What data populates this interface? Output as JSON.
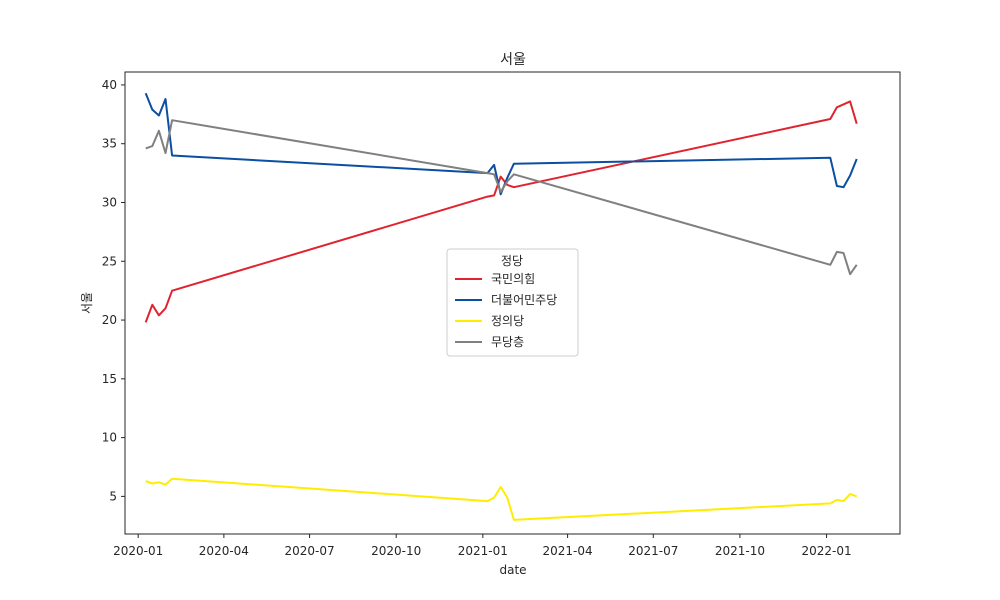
{
  "chart_data": {
    "type": "line",
    "title": "서울",
    "xlabel": "date",
    "ylabel": "서울",
    "xlim": [
      "2019-12-18",
      "2022-03-20"
    ],
    "ylim": [
      1.8,
      41.1
    ],
    "x_ticks": [
      {
        "date": "2020-01-01",
        "label": "2020-01"
      },
      {
        "date": "2020-04-01",
        "label": "2020-04"
      },
      {
        "date": "2020-07-01",
        "label": "2020-07"
      },
      {
        "date": "2020-10-01",
        "label": "2020-10"
      },
      {
        "date": "2021-01-01",
        "label": "2021-01"
      },
      {
        "date": "2021-04-01",
        "label": "2021-04"
      },
      {
        "date": "2021-07-01",
        "label": "2021-07"
      },
      {
        "date": "2021-10-01",
        "label": "2021-10"
      },
      {
        "date": "2022-01-01",
        "label": "2022-01"
      }
    ],
    "y_ticks": [
      5,
      10,
      15,
      20,
      25,
      30,
      35,
      40
    ],
    "grid": false,
    "legend": {
      "title": "정당",
      "position": "center"
    },
    "series": [
      {
        "name": "국민의힘",
        "color": "#e0242f",
        "points": [
          [
            "2020-01-09",
            19.8
          ],
          [
            "2020-01-16",
            21.3
          ],
          [
            "2020-01-23",
            20.4
          ],
          [
            "2020-01-30",
            21.0
          ],
          [
            "2020-02-06",
            22.5
          ],
          [
            "2021-01-06",
            30.5
          ],
          [
            "2021-01-13",
            30.6
          ],
          [
            "2021-01-20",
            32.2
          ],
          [
            "2021-01-27",
            31.5
          ],
          [
            "2021-02-03",
            31.3
          ],
          [
            "2022-01-05",
            37.1
          ],
          [
            "2022-01-12",
            38.1
          ],
          [
            "2022-01-26",
            38.6
          ],
          [
            "2022-02-02",
            36.7
          ]
        ]
      },
      {
        "name": "더불어민주당",
        "color": "#0b4ea2",
        "points": [
          [
            "2020-01-09",
            39.3
          ],
          [
            "2020-01-16",
            37.9
          ],
          [
            "2020-01-23",
            37.4
          ],
          [
            "2020-01-30",
            38.8
          ],
          [
            "2020-02-06",
            34.0
          ],
          [
            "2021-01-06",
            32.5
          ],
          [
            "2021-01-13",
            33.2
          ],
          [
            "2021-01-20",
            30.7
          ],
          [
            "2021-01-27",
            32.1
          ],
          [
            "2021-02-03",
            33.3
          ],
          [
            "2022-01-05",
            33.8
          ],
          [
            "2022-01-12",
            31.4
          ],
          [
            "2022-01-19",
            31.3
          ],
          [
            "2022-01-26",
            32.3
          ],
          [
            "2022-02-02",
            33.7
          ]
        ]
      },
      {
        "name": "정의당",
        "color": "#ffed00",
        "points": [
          [
            "2020-01-09",
            6.3
          ],
          [
            "2020-01-16",
            6.1
          ],
          [
            "2020-01-23",
            6.2
          ],
          [
            "2020-01-30",
            6.0
          ],
          [
            "2020-02-06",
            6.5
          ],
          [
            "2021-01-06",
            4.6
          ],
          [
            "2021-01-13",
            4.9
          ],
          [
            "2021-01-20",
            5.8
          ],
          [
            "2021-01-27",
            4.9
          ],
          [
            "2021-02-03",
            3.0
          ],
          [
            "2022-01-05",
            4.4
          ],
          [
            "2022-01-12",
            4.7
          ],
          [
            "2022-01-19",
            4.6
          ],
          [
            "2022-01-26",
            5.2
          ],
          [
            "2022-02-02",
            5.0
          ]
        ]
      },
      {
        "name": "무당층",
        "color": "#808080",
        "points": [
          [
            "2020-01-09",
            34.6
          ],
          [
            "2020-01-16",
            34.8
          ],
          [
            "2020-01-23",
            36.1
          ],
          [
            "2020-01-30",
            34.2
          ],
          [
            "2020-02-06",
            37.0
          ],
          [
            "2021-01-06",
            32.5
          ],
          [
            "2021-01-13",
            32.4
          ],
          [
            "2021-01-20",
            30.9
          ],
          [
            "2021-01-27",
            31.8
          ],
          [
            "2021-02-03",
            32.4
          ],
          [
            "2022-01-05",
            24.7
          ],
          [
            "2022-01-12",
            25.8
          ],
          [
            "2022-01-19",
            25.7
          ],
          [
            "2022-01-26",
            23.9
          ],
          [
            "2022-02-02",
            24.7
          ]
        ]
      }
    ]
  }
}
